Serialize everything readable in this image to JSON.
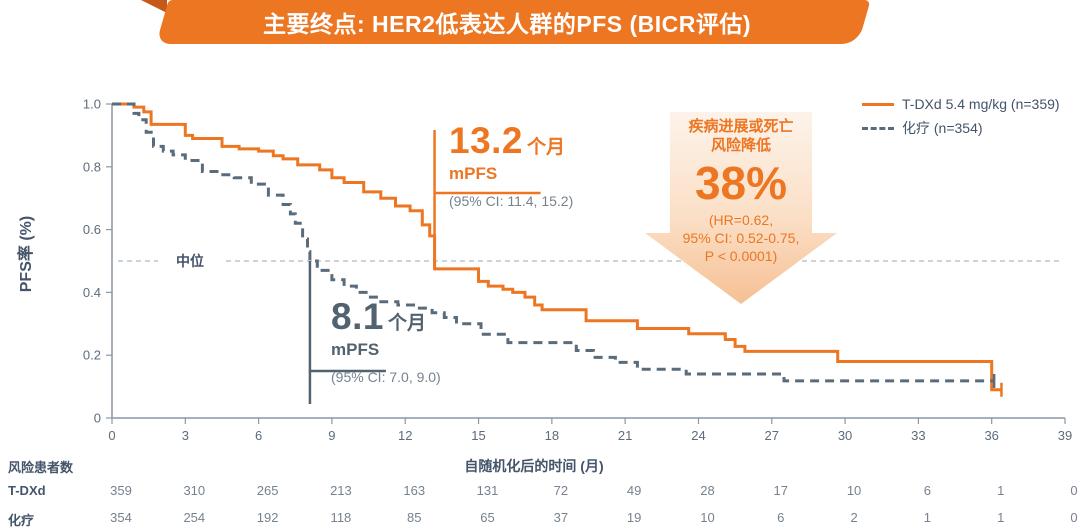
{
  "title": {
    "text": "主要终点: HER2低表达人群的PFS (BICR评估)"
  },
  "colors": {
    "accent_orange": "#ed7623",
    "ribbon_fold": "#c4591a",
    "slate_curve": "#5a6b7c",
    "text_dark": "#44546a",
    "text_muted": "#76828f",
    "median_line": "#9aa7b5",
    "arrow_gradient_top": "#fdf3ea",
    "arrow_gradient_bottom": "#f6c094"
  },
  "chart_data": {
    "type": "line",
    "subtype": "kaplan-meier-step",
    "title": "主要终点: HER2低表达人群的PFS (BICR评估)",
    "xlabel": "自随机化后的时间 (月)",
    "ylabel": "PFS率 (%)",
    "xlim": [
      0,
      39
    ],
    "ylim": [
      0,
      1.0
    ],
    "xticks": [
      0,
      3,
      6,
      9,
      12,
      15,
      18,
      21,
      24,
      27,
      30,
      33,
      36,
      39
    ],
    "yticks": [
      0,
      0.2,
      0.4,
      0.6,
      0.8,
      1.0
    ],
    "grid": false,
    "legend_position": "upper right",
    "median_reference_line": {
      "y": 0.5,
      "label": "中位",
      "style": "dashed"
    },
    "series": [
      {
        "name": "T-DXd 5.4 mg/kg (n=359)",
        "color": "#ed7623",
        "dash": false,
        "median_months": 13.2,
        "median_ci": "(95% CI: 11.4, 15.2)",
        "end_tick": true,
        "points": [
          [
            0,
            1.0
          ],
          [
            0.9,
            0.99
          ],
          [
            1.3,
            0.975
          ],
          [
            1.6,
            0.935
          ],
          [
            3.0,
            0.9
          ],
          [
            3.3,
            0.89
          ],
          [
            4.5,
            0.865
          ],
          [
            5.2,
            0.857
          ],
          [
            6.0,
            0.85
          ],
          [
            6.6,
            0.835
          ],
          [
            7.0,
            0.825
          ],
          [
            7.6,
            0.806
          ],
          [
            8.5,
            0.79
          ],
          [
            9.0,
            0.765
          ],
          [
            9.5,
            0.75
          ],
          [
            10.3,
            0.72
          ],
          [
            11.0,
            0.7
          ],
          [
            11.6,
            0.675
          ],
          [
            12.2,
            0.66
          ],
          [
            12.7,
            0.615
          ],
          [
            13.0,
            0.58
          ],
          [
            13.2,
            0.475
          ],
          [
            15.0,
            0.435
          ],
          [
            15.4,
            0.42
          ],
          [
            16.0,
            0.41
          ],
          [
            16.4,
            0.4
          ],
          [
            16.9,
            0.385
          ],
          [
            17.3,
            0.36
          ],
          [
            17.6,
            0.345
          ],
          [
            19.4,
            0.31
          ],
          [
            21.5,
            0.285
          ],
          [
            23.6,
            0.268
          ],
          [
            25.1,
            0.25
          ],
          [
            25.5,
            0.228
          ],
          [
            25.9,
            0.212
          ],
          [
            29.7,
            0.18
          ],
          [
            36.0,
            0.09
          ],
          [
            36.4,
            0.09
          ]
        ]
      },
      {
        "name": "化疗 (n=354)",
        "color": "#5a6b7c",
        "dash": true,
        "median_months": 8.1,
        "median_ci": "(95% CI: 7.0, 9.0)",
        "end_tick": true,
        "points": [
          [
            0,
            1.0
          ],
          [
            0.9,
            0.97
          ],
          [
            1.1,
            0.95
          ],
          [
            1.4,
            0.91
          ],
          [
            1.7,
            0.865
          ],
          [
            2.1,
            0.85
          ],
          [
            2.5,
            0.838
          ],
          [
            3.0,
            0.82
          ],
          [
            3.7,
            0.785
          ],
          [
            4.4,
            0.775
          ],
          [
            5.0,
            0.765
          ],
          [
            5.7,
            0.745
          ],
          [
            6.4,
            0.71
          ],
          [
            7.0,
            0.68
          ],
          [
            7.3,
            0.65
          ],
          [
            7.5,
            0.62
          ],
          [
            7.8,
            0.57
          ],
          [
            8.0,
            0.53
          ],
          [
            8.1,
            0.5
          ],
          [
            8.4,
            0.47
          ],
          [
            9.0,
            0.44
          ],
          [
            9.5,
            0.42
          ],
          [
            10.0,
            0.4
          ],
          [
            10.5,
            0.385
          ],
          [
            11.0,
            0.37
          ],
          [
            11.7,
            0.36
          ],
          [
            12.4,
            0.35
          ],
          [
            13.1,
            0.335
          ],
          [
            13.6,
            0.32
          ],
          [
            14.1,
            0.3
          ],
          [
            15.1,
            0.267
          ],
          [
            16.2,
            0.24
          ],
          [
            19.0,
            0.215
          ],
          [
            19.7,
            0.193
          ],
          [
            20.6,
            0.177
          ],
          [
            21.5,
            0.155
          ],
          [
            23.5,
            0.14
          ],
          [
            27.5,
            0.118
          ],
          [
            36.1,
            0.118
          ]
        ]
      }
    ]
  },
  "annotations": {
    "tdxd_median": {
      "value": "13.2",
      "unit": "个月",
      "label": "mPFS",
      "ci": "(95% CI: 11.4, 15.2)"
    },
    "chemo_median": {
      "value": "8.1",
      "unit": "个月",
      "label": "mPFS",
      "ci": "(95% CI: 7.0, 9.0)"
    },
    "risk_arrow": {
      "line1": "疾病进展或死亡",
      "line2": "风险降低",
      "pct": "38%",
      "hr": "(HR=0.62,",
      "ci": "95% CI: 0.52-0.75,",
      "p": "P < 0.0001)"
    },
    "median_label": "中位"
  },
  "axis": {
    "y_title": "PFS率 (%)",
    "x_title": "自随机化后的时间 (月)"
  },
  "legend": {
    "items": [
      {
        "label": "T-DXd 5.4 mg/kg (n=359)",
        "style": "solid"
      },
      {
        "label": "化疗 (n=354)",
        "style": "dashed"
      }
    ]
  },
  "risk_table": {
    "header": "风险患者数",
    "months": [
      0,
      3,
      6,
      9,
      12,
      15,
      18,
      21,
      24,
      27,
      30,
      33,
      36,
      39
    ],
    "rows": [
      {
        "label": "T-DXd",
        "values": [
          359,
          310,
          265,
          213,
          163,
          131,
          72,
          49,
          28,
          17,
          10,
          6,
          1,
          0
        ]
      },
      {
        "label": "化疗",
        "values": [
          354,
          254,
          192,
          118,
          85,
          65,
          37,
          19,
          10,
          6,
          2,
          1,
          1,
          0
        ]
      }
    ]
  }
}
